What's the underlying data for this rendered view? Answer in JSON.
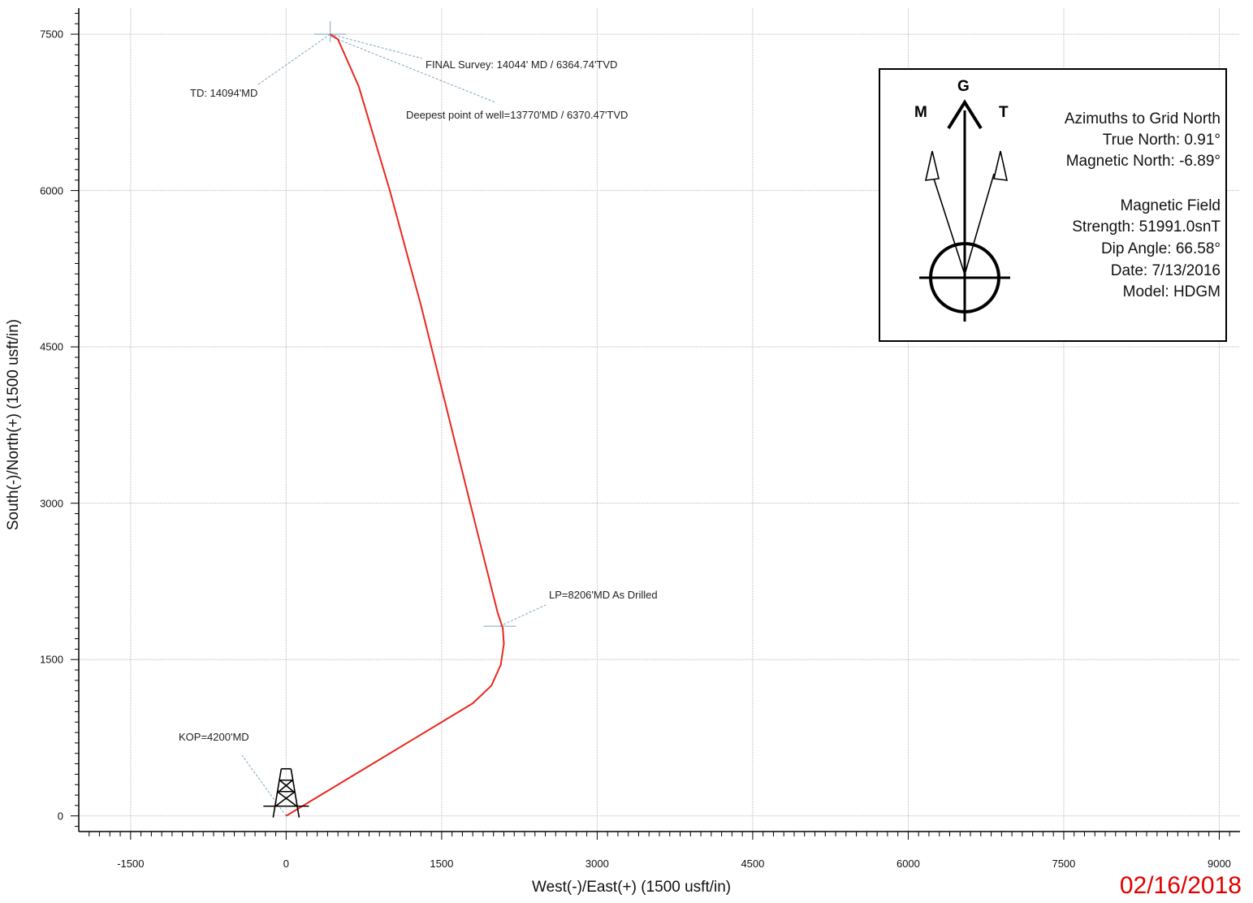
{
  "chart_data": {
    "type": "line",
    "xlabel": "West(-)/East(+) (1500 usft/in)",
    "ylabel": "South(-)/North(+) (1500 usft/in)",
    "xlim": [
      -2000,
      9200
    ],
    "ylim": [
      -150,
      7750
    ],
    "x_ticks": [
      -1500,
      0,
      1500,
      3000,
      4500,
      6000,
      7500,
      9000
    ],
    "y_ticks": [
      0,
      1500,
      3000,
      4500,
      6000,
      7500
    ],
    "grid": true,
    "series": [
      {
        "color": "#e8281e",
        "x": [
          0,
          500,
          1000,
          1500,
          1800,
          1980,
          2070,
          2100,
          2090,
          2040,
          1850,
          1600,
          1300,
          1000,
          700,
          500,
          425
        ],
        "y": [
          0,
          300,
          600,
          900,
          1080,
          1250,
          1450,
          1650,
          1800,
          1950,
          2700,
          3700,
          4900,
          6000,
          7000,
          7450,
          7500
        ]
      }
    ],
    "annotations": [
      {
        "text": "FINAL Survey: 14044' MD / 6364.74'TVD",
        "x": 425,
        "y": 7500
      },
      {
        "text": "TD: 14094'MD",
        "x": 425,
        "y": 7500
      },
      {
        "text": "Deepest point of well=13770'MD / 6370.47'TVD",
        "x": 425,
        "y": 7480
      },
      {
        "text": "LP=8206'MD As Drilled",
        "x": 2060,
        "y": 1820
      },
      {
        "text": "KOP=4200'MD",
        "x": 0,
        "y": 0
      }
    ]
  },
  "legend": {
    "g": "G",
    "m": "M",
    "t": "T",
    "lines": [
      "Azimuths to Grid North",
      "True North: 0.91°",
      "Magnetic North: -6.89°",
      "Magnetic Field",
      "Strength: 51991.0snT",
      "Dip Angle: 66.58°",
      "Date: 7/13/2016",
      "Model: HDGM"
    ]
  },
  "stamp": "02/16/2018",
  "colors": {
    "path": "#e8281e",
    "grid": "#b9b9b9",
    "stamp": "#e10000"
  }
}
